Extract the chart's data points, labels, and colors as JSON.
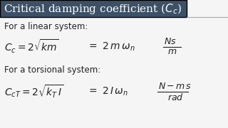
{
  "title": "Critical damping coefficient ($C_c$)",
  "title_bg": "#3d5166",
  "title_color": "#ffffff",
  "bg_color": "#f5f5f5",
  "linear_label": "For a linear system:",
  "linear_eq1": "$C_c = 2\\sqrt{km}$",
  "linear_eq2": "$= \\ 2 \\, m \\, \\omega_n$",
  "linear_units_num": "$Ns$",
  "linear_units_den": "$m$",
  "torsional_label": "For a torsional system:",
  "torsional_eq1": "$C_{cT} = 2\\sqrt{k_T \\, I}$",
  "torsional_eq2": "$= \\ 2 \\, I \\, \\omega_n$",
  "torsional_units_num": "$N - m \\, s$",
  "torsional_units_den": "$rad$",
  "title_fontsize": 11,
  "text_fontsize": 8.5,
  "eq_fontsize": 9,
  "line_color": "#aaaaaa",
  "text_color": "#222222"
}
